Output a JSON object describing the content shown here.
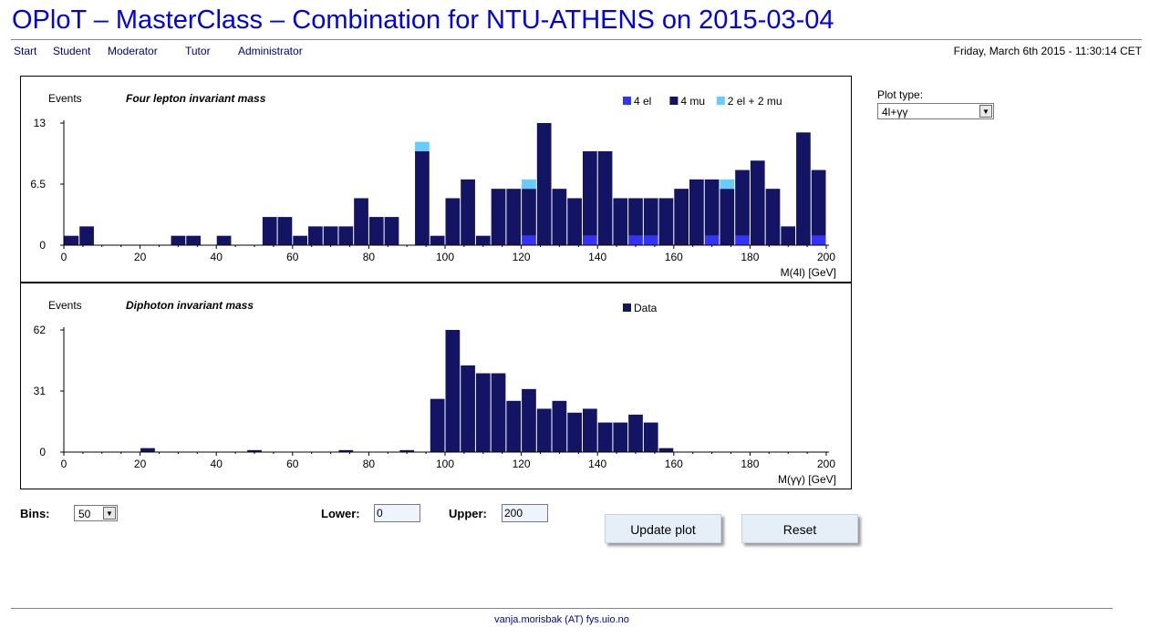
{
  "header": {
    "title": "OPloT – MasterClass – Combination for NTU-ATHENS on 2015-03-04",
    "nav": [
      "Start",
      "Student",
      "Moderator",
      "Tutor",
      "Administrator"
    ],
    "datetime": "Friday, March 6th 2015 - 11:30:14 CET"
  },
  "sidebar": {
    "plot_type_label": "Plot type:",
    "plot_type_value": "4l+γγ"
  },
  "controls": {
    "bins_label": "Bins:",
    "bins_value": "50",
    "lower_label": "Lower:",
    "lower_value": "0",
    "upper_label": "Upper:",
    "upper_value": "200",
    "update_label": "Update plot",
    "reset_label": "Reset"
  },
  "footer": {
    "email": "vanja.morisbak (AT) fys.uio.no"
  },
  "colors": {
    "el4": "#3333ff",
    "mu4": "#141464",
    "el2mu2": "#66ccff",
    "data": "#141464",
    "title": "#0000ee"
  },
  "chart_data": [
    {
      "type": "bar",
      "stacked": true,
      "title": "Four lepton invariant mass",
      "ylabel": "Events",
      "xlabel": "M(4l) [GeV]",
      "xlim": [
        0,
        200
      ],
      "ylim": [
        0,
        13
      ],
      "yticks": [
        0,
        6.5,
        13
      ],
      "xticks": [
        0,
        20,
        40,
        60,
        80,
        100,
        120,
        140,
        160,
        180,
        200
      ],
      "bin_width": 4,
      "bin_starts": [
        0,
        4,
        8,
        12,
        16,
        20,
        24,
        28,
        32,
        36,
        40,
        44,
        48,
        52,
        56,
        60,
        64,
        68,
        72,
        76,
        80,
        84,
        88,
        92,
        96,
        100,
        104,
        108,
        112,
        116,
        120,
        124,
        128,
        132,
        136,
        140,
        144,
        148,
        152,
        156,
        160,
        164,
        168,
        172,
        176,
        180,
        184,
        188,
        192,
        196
      ],
      "legend_position": "top-right",
      "series": [
        {
          "name": "4 el",
          "color": "#3333ff",
          "values": [
            0,
            0,
            0,
            0,
            0,
            0,
            0,
            0,
            0,
            0,
            0,
            0,
            0,
            0,
            0,
            0,
            0,
            0,
            0,
            0,
            0,
            0,
            0,
            0,
            0,
            0,
            0,
            0,
            0,
            0,
            1,
            0,
            0,
            0,
            1,
            0,
            0,
            1,
            1,
            0,
            0,
            0,
            1,
            0,
            1,
            0,
            0,
            0,
            0,
            1
          ]
        },
        {
          "name": "4 mu",
          "color": "#141464",
          "values": [
            1,
            2,
            0,
            0,
            0,
            0,
            0,
            1,
            1,
            0,
            1,
            0,
            0,
            3,
            3,
            1,
            2,
            2,
            2,
            5,
            3,
            3,
            0,
            10,
            1,
            5,
            7,
            1,
            6,
            6,
            5,
            13,
            6,
            5,
            9,
            10,
            5,
            4,
            4,
            5,
            6,
            7,
            6,
            6,
            7,
            9,
            6,
            2,
            12,
            7
          ]
        },
        {
          "name": "2 el + 2 mu",
          "color": "#66ccff",
          "values": [
            0,
            0,
            0,
            0,
            0,
            0,
            0,
            0,
            0,
            0,
            0,
            0,
            0,
            0,
            0,
            0,
            0,
            0,
            0,
            0,
            0,
            0,
            0,
            1,
            0,
            0,
            0,
            0,
            0,
            0,
            1,
            0,
            0,
            0,
            0,
            0,
            0,
            0,
            0,
            0,
            0,
            0,
            0,
            1,
            0,
            0,
            0,
            0,
            0,
            0
          ]
        }
      ]
    },
    {
      "type": "bar",
      "title": "Diphoton invariant mass",
      "ylabel": "Events",
      "xlabel": "M(γγ) [GeV]",
      "xlim": [
        0,
        200
      ],
      "ylim": [
        0,
        62
      ],
      "yticks": [
        0,
        31,
        62
      ],
      "xticks": [
        0,
        20,
        40,
        60,
        80,
        100,
        120,
        140,
        160,
        180,
        200
      ],
      "bin_width": 4,
      "bin_starts": [
        0,
        4,
        8,
        12,
        16,
        20,
        24,
        28,
        32,
        36,
        40,
        44,
        48,
        52,
        56,
        60,
        64,
        68,
        72,
        76,
        80,
        84,
        88,
        92,
        96,
        100,
        104,
        108,
        112,
        116,
        120,
        124,
        128,
        132,
        136,
        140,
        144,
        148,
        152,
        156,
        160,
        164,
        168,
        172,
        176,
        180,
        184,
        188,
        192,
        196
      ],
      "legend_position": "top-right",
      "series": [
        {
          "name": "Data",
          "color": "#141464",
          "values": [
            0,
            0,
            0,
            0,
            0,
            2,
            0,
            0,
            0,
            0,
            0,
            0,
            1,
            0,
            0,
            0,
            0,
            0,
            1,
            0,
            0,
            0,
            1,
            0,
            27,
            62,
            44,
            40,
            40,
            26,
            32,
            22,
            26,
            20,
            22,
            15,
            15,
            19,
            15,
            2,
            0,
            0,
            0,
            0,
            0,
            0,
            0,
            0,
            0,
            0
          ]
        }
      ]
    }
  ]
}
